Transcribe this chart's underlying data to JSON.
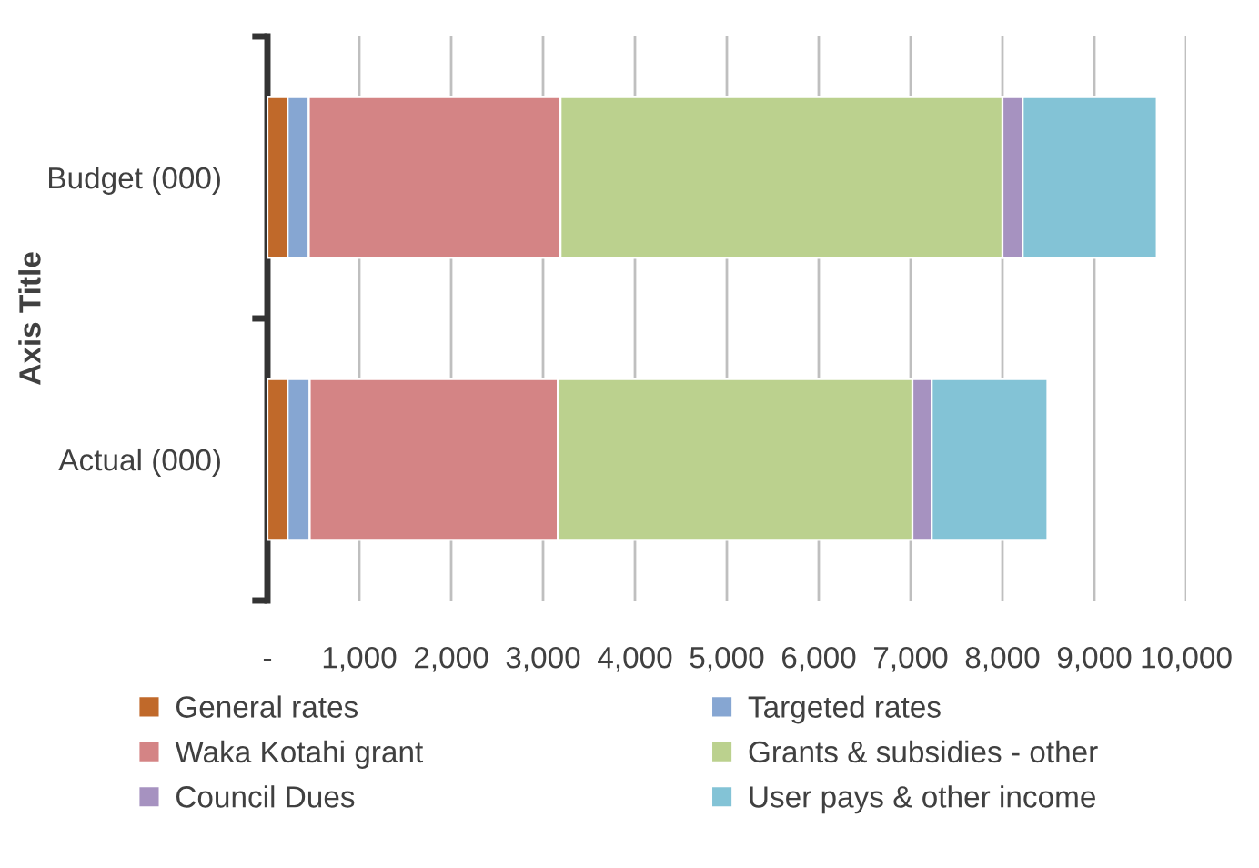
{
  "chart_data": {
    "type": "bar",
    "orientation": "horizontal",
    "stacked": true,
    "ylabel": "Axis Title",
    "categories": [
      "Budget (000)",
      "Actual (000)"
    ],
    "series": [
      {
        "name": "General rates",
        "color": "#c0692a",
        "values": [
          220,
          220
        ]
      },
      {
        "name": "Targeted rates",
        "color": "#86a6d2",
        "values": [
          230,
          240
        ]
      },
      {
        "name": "Waka Kotahi grant",
        "color": "#d48485",
        "values": [
          2740,
          2700
        ]
      },
      {
        "name": "Grants & subsidies - other",
        "color": "#bbd18e",
        "values": [
          4810,
          3860
        ]
      },
      {
        "name": "Council Dues",
        "color": "#a692c0",
        "values": [
          220,
          210
        ]
      },
      {
        "name": "User pays & other income",
        "color": "#83c3d6",
        "values": [
          1460,
          1260
        ]
      }
    ],
    "xlim": [
      0,
      10000
    ],
    "xticks": [
      {
        "value": 0,
        "label": "-"
      },
      {
        "value": 1000,
        "label": "1,000"
      },
      {
        "value": 2000,
        "label": "2,000"
      },
      {
        "value": 3000,
        "label": "3,000"
      },
      {
        "value": 4000,
        "label": "4,000"
      },
      {
        "value": 5000,
        "label": "5,000"
      },
      {
        "value": 6000,
        "label": "6,000"
      },
      {
        "value": 7000,
        "label": "7,000"
      },
      {
        "value": 8000,
        "label": "8,000"
      },
      {
        "value": 9000,
        "label": "9,000"
      },
      {
        "value": 10000,
        "label": "10,000"
      }
    ],
    "grid": "x",
    "legend": "bottom"
  }
}
